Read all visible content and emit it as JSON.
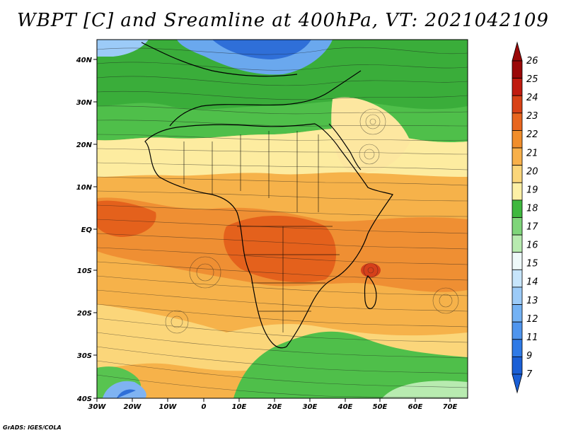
{
  "title": "WBPT [C] and Sreamline at 400hPa, VT: 2021042109",
  "credit": "GrADS: IGES/COLA",
  "lat_labels": [
    "40N",
    "30N",
    "20N",
    "10N",
    "EQ",
    "10S",
    "20S",
    "30S",
    "40S"
  ],
  "lon_labels": [
    "30W",
    "20W",
    "10W",
    "0",
    "10E",
    "20E",
    "30E",
    "40E",
    "50E",
    "60E",
    "70E"
  ],
  "colorbar": {
    "levels": [
      "7",
      "9",
      "11",
      "12",
      "13",
      "14",
      "15",
      "16",
      "17",
      "18",
      "19",
      "20",
      "21",
      "22",
      "23",
      "24",
      "25",
      "26"
    ],
    "colors": [
      "#1a5fd6",
      "#2f7ae6",
      "#4f95ee",
      "#74b2f4",
      "#9ccbf8",
      "#c7e5fb",
      "#eef9f9",
      "#b8ebb0",
      "#7fd57a",
      "#3fb83f",
      "#fdf0a6",
      "#fbd67a",
      "#f8b04a",
      "#f18e2b",
      "#e8661e",
      "#d84216",
      "#c01b0f",
      "#9a0808"
    ]
  }
}
